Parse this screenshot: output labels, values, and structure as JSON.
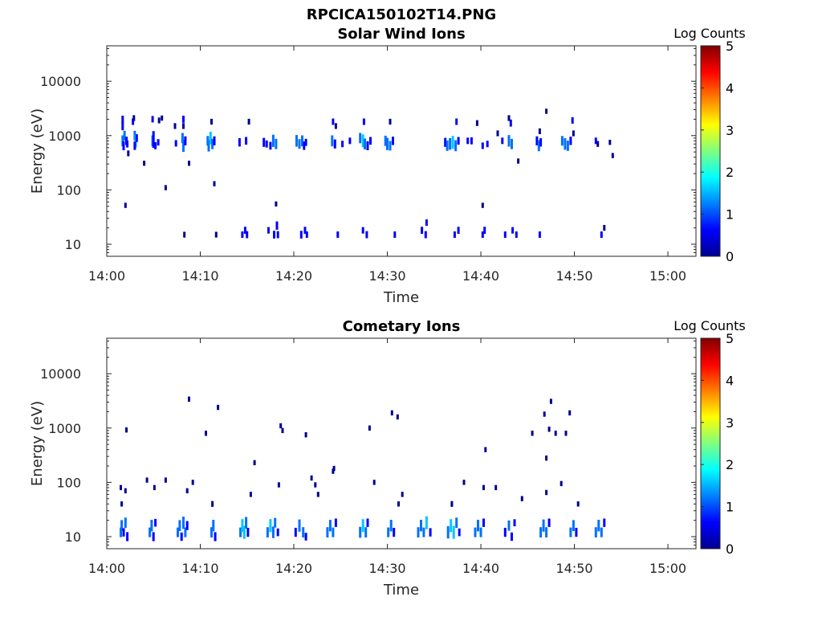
{
  "figure": {
    "title": "RPCICA150102T14.PNG"
  },
  "palette": [
    "#00008f",
    "#0000ff",
    "#0070ff",
    "#00c8ff",
    "#40ffbf",
    "#c0ff40",
    "#ffd000",
    "#ff6000",
    "#e00000",
    "#800000"
  ],
  "chart_data": [
    {
      "type": "heatmap",
      "title": "Solar Wind Ions",
      "xlabel": "Time",
      "ylabel": "Energy (eV)",
      "xlim": [
        "14:00",
        "15:03"
      ],
      "ylim": [
        6,
        45000
      ],
      "yscale": "log",
      "xticks": [
        "14:00",
        "14:10",
        "14:20",
        "14:30",
        "14:40",
        "14:50",
        "15:00"
      ],
      "yticks": [
        "10",
        "100",
        "1000",
        "10000"
      ],
      "colorbar": {
        "label": "Log Counts",
        "range": [
          0,
          5
        ],
        "ticks": [
          "0",
          "1",
          "2",
          "3",
          "4",
          "5"
        ]
      },
      "grid": false,
      "points": [
        [
          1.7,
          2000,
          0.6
        ],
        [
          1.7,
          1500,
          0.8
        ],
        [
          1.7,
          800,
          1.2
        ],
        [
          1.8,
          650,
          0.9
        ],
        [
          1.9,
          1000,
          1.0
        ],
        [
          2.1,
          800,
          0.8
        ],
        [
          2.2,
          700,
          0.6
        ],
        [
          2.0,
          52,
          0.3
        ],
        [
          2.3,
          470,
          0.4
        ],
        [
          3.0,
          1000,
          1.0
        ],
        [
          3.1,
          800,
          1.5
        ],
        [
          3.0,
          650,
          0.8
        ],
        [
          3.2,
          900,
          0.7
        ],
        [
          2.8,
          1800,
          0.5
        ],
        [
          2.9,
          2100,
          0.4
        ],
        [
          4.0,
          310,
          0.3
        ],
        [
          4.9,
          800,
          1.2
        ],
        [
          5.0,
          1000,
          0.9
        ],
        [
          5.0,
          700,
          0.7
        ],
        [
          5.2,
          650,
          0.6
        ],
        [
          4.9,
          2000,
          0.5
        ],
        [
          5.6,
          1900,
          0.4
        ],
        [
          5.9,
          2100,
          0.3
        ],
        [
          5.5,
          750,
          0.5
        ],
        [
          6.3,
          110,
          0.3
        ],
        [
          7.4,
          720,
          0.5
        ],
        [
          7.3,
          1500,
          0.4
        ],
        [
          8.1,
          900,
          1.1
        ],
        [
          8.2,
          650,
          1.4
        ],
        [
          8.4,
          800,
          0.9
        ],
        [
          8.2,
          2000,
          0.6
        ],
        [
          8.2,
          1500,
          0.4
        ],
        [
          8.8,
          310,
          0.3
        ],
        [
          8.3,
          15,
          0.4
        ],
        [
          10.8,
          800,
          1.0
        ],
        [
          10.9,
          650,
          1.3
        ],
        [
          11.1,
          900,
          1.5
        ],
        [
          11.3,
          700,
          1.1
        ],
        [
          11.5,
          800,
          0.9
        ],
        [
          11.2,
          1800,
          0.4
        ],
        [
          11.5,
          130,
          0.3
        ],
        [
          11.7,
          15,
          0.4
        ],
        [
          14.2,
          750,
          0.8
        ],
        [
          14.5,
          15,
          0.5
        ],
        [
          14.8,
          18,
          0.6
        ],
        [
          15.0,
          15,
          0.6
        ],
        [
          14.9,
          800,
          0.7
        ],
        [
          15.2,
          1800,
          0.4
        ],
        [
          16.8,
          750,
          0.9
        ],
        [
          17.1,
          700,
          0.6
        ],
        [
          17.3,
          18,
          0.5
        ],
        [
          17.5,
          650,
          0.7
        ],
        [
          17.8,
          800,
          1.4
        ],
        [
          18.1,
          700,
          1.1
        ],
        [
          18.1,
          55,
          0.3
        ],
        [
          17.9,
          15,
          0.7
        ],
        [
          18.2,
          22,
          0.8
        ],
        [
          18.3,
          15,
          0.6
        ],
        [
          20.3,
          800,
          1.3
        ],
        [
          20.6,
          700,
          1.0
        ],
        [
          20.9,
          800,
          1.2
        ],
        [
          21.1,
          650,
          0.8
        ],
        [
          21.3,
          750,
          0.6
        ],
        [
          20.8,
          15,
          0.7
        ],
        [
          21.2,
          18,
          0.6
        ],
        [
          21.4,
          15,
          0.5
        ],
        [
          24.1,
          800,
          1.2
        ],
        [
          24.4,
          700,
          0.9
        ],
        [
          24.2,
          1800,
          0.5
        ],
        [
          24.5,
          1500,
          0.4
        ],
        [
          24.7,
          15,
          0.5
        ],
        [
          25.2,
          700,
          0.5
        ],
        [
          26.0,
          800,
          0.5
        ],
        [
          27.1,
          900,
          1.1
        ],
        [
          27.4,
          800,
          1.6
        ],
        [
          27.6,
          700,
          1.2
        ],
        [
          27.9,
          650,
          0.9
        ],
        [
          28.2,
          800,
          0.7
        ],
        [
          27.5,
          1800,
          0.5
        ],
        [
          27.4,
          18,
          0.5
        ],
        [
          27.8,
          15,
          0.6
        ],
        [
          29.8,
          800,
          1.1
        ],
        [
          30.0,
          700,
          1.4
        ],
        [
          30.3,
          650,
          1.0
        ],
        [
          30.6,
          800,
          0.8
        ],
        [
          30.3,
          1800,
          0.4
        ],
        [
          30.8,
          15,
          0.5
        ],
        [
          33.7,
          18,
          0.6
        ],
        [
          34.1,
          15,
          0.6
        ],
        [
          34.2,
          25,
          0.5
        ],
        [
          36.2,
          750,
          0.9
        ],
        [
          36.4,
          650,
          1.1
        ],
        [
          36.7,
          700,
          1.3
        ],
        [
          37.0,
          750,
          1.7
        ],
        [
          37.3,
          650,
          1.2
        ],
        [
          37.6,
          800,
          0.7
        ],
        [
          37.4,
          1800,
          0.5
        ],
        [
          37.2,
          15,
          0.5
        ],
        [
          37.6,
          18,
          0.6
        ],
        [
          38.6,
          800,
          0.5
        ],
        [
          39.0,
          800,
          0.6
        ],
        [
          39.6,
          1700,
          0.4
        ],
        [
          40.2,
          650,
          0.5
        ],
        [
          40.2,
          52,
          0.3
        ],
        [
          40.2,
          15,
          0.5
        ],
        [
          40.4,
          18,
          0.6
        ],
        [
          40.7,
          700,
          0.5
        ],
        [
          41.8,
          1100,
          0.4
        ],
        [
          42.3,
          800,
          0.5
        ],
        [
          42.6,
          15,
          0.5
        ],
        [
          43.0,
          800,
          1.3
        ],
        [
          43.3,
          700,
          1.1
        ],
        [
          43.2,
          1700,
          0.6
        ],
        [
          43.0,
          2100,
          0.4
        ],
        [
          43.4,
          18,
          0.5
        ],
        [
          44.0,
          340,
          0.3
        ],
        [
          43.8,
          15,
          0.5
        ],
        [
          46.0,
          800,
          0.9
        ],
        [
          46.2,
          650,
          1.2
        ],
        [
          46.4,
          750,
          0.8
        ],
        [
          47.0,
          2800,
          0.3
        ],
        [
          46.3,
          1200,
          0.4
        ],
        [
          46.3,
          15,
          0.5
        ],
        [
          48.7,
          800,
          1.0
        ],
        [
          49.0,
          700,
          1.3
        ],
        [
          49.3,
          650,
          1.1
        ],
        [
          49.6,
          800,
          0.8
        ],
        [
          49.8,
          1900,
          0.5
        ],
        [
          49.9,
          1100,
          0.4
        ],
        [
          52.3,
          800,
          0.5
        ],
        [
          52.5,
          700,
          0.4
        ],
        [
          52.9,
          15,
          0.5
        ],
        [
          53.2,
          20,
          0.4
        ],
        [
          53.8,
          750,
          0.3
        ],
        [
          54.1,
          430,
          0.3
        ]
      ]
    },
    {
      "type": "heatmap",
      "title": "Cometary Ions",
      "xlabel": "Time",
      "ylabel": "Energy (eV)",
      "xlim": [
        "14:00",
        "15:03"
      ],
      "ylim": [
        6,
        45000
      ],
      "yscale": "log",
      "xticks": [
        "14:00",
        "14:10",
        "14:20",
        "14:30",
        "14:40",
        "14:50",
        "15:00"
      ],
      "yticks": [
        "10",
        "100",
        "1000",
        "10000"
      ],
      "colorbar": {
        "label": "Log Counts",
        "range": [
          0,
          5
        ],
        "ticks": [
          "0",
          "1",
          "2",
          "3",
          "4",
          "5"
        ]
      },
      "grid": false,
      "points": [
        [
          1.5,
          12,
          1.0
        ],
        [
          1.6,
          16,
          1.2
        ],
        [
          1.8,
          12,
          0.8
        ],
        [
          2.0,
          18,
          1.1
        ],
        [
          2.2,
          10,
          0.9
        ],
        [
          2.0,
          70,
          0.3
        ],
        [
          1.5,
          80,
          0.3
        ],
        [
          1.6,
          40,
          0.3
        ],
        [
          2.1,
          920,
          0.3
        ],
        [
          4.6,
          12,
          1.0
        ],
        [
          4.8,
          16,
          1.3
        ],
        [
          5.0,
          10,
          0.9
        ],
        [
          5.2,
          18,
          0.7
        ],
        [
          4.3,
          110,
          0.3
        ],
        [
          5.1,
          80,
          0.3
        ],
        [
          6.3,
          110,
          0.3
        ],
        [
          7.6,
          12,
          1.0
        ],
        [
          7.8,
          16,
          1.2
        ],
        [
          8.0,
          10,
          0.8
        ],
        [
          8.2,
          18,
          1.4
        ],
        [
          8.4,
          12,
          1.0
        ],
        [
          8.6,
          16,
          0.9
        ],
        [
          8.8,
          3400,
          0.3
        ],
        [
          9.2,
          100,
          0.3
        ],
        [
          8.6,
          70,
          0.3
        ],
        [
          10.6,
          800,
          0.3
        ],
        [
          11.2,
          12,
          1.1
        ],
        [
          11.4,
          16,
          1.3
        ],
        [
          11.6,
          10,
          0.9
        ],
        [
          11.3,
          40,
          0.4
        ],
        [
          11.9,
          2400,
          0.3
        ],
        [
          14.3,
          12,
          1.0
        ],
        [
          14.5,
          16,
          1.5
        ],
        [
          14.7,
          12,
          1.8
        ],
        [
          14.9,
          18,
          1.3
        ],
        [
          15.1,
          12,
          0.9
        ],
        [
          15.4,
          60,
          0.3
        ],
        [
          15.8,
          230,
          0.3
        ],
        [
          17.2,
          12,
          1.1
        ],
        [
          17.5,
          16,
          1.6
        ],
        [
          17.8,
          12,
          1.3
        ],
        [
          18.0,
          18,
          1.0
        ],
        [
          18.3,
          12,
          0.7
        ],
        [
          18.6,
          1100,
          0.3
        ],
        [
          18.8,
          900,
          0.3
        ],
        [
          18.4,
          90,
          0.3
        ],
        [
          20.2,
          12,
          0.9
        ],
        [
          20.6,
          16,
          1.4
        ],
        [
          21.0,
          12,
          1.1
        ],
        [
          21.3,
          10,
          0.7
        ],
        [
          21.3,
          750,
          0.3
        ],
        [
          21.9,
          120,
          0.3
        ],
        [
          22.3,
          90,
          0.3
        ],
        [
          22.6,
          60,
          0.3
        ],
        [
          23.6,
          12,
          1.1
        ],
        [
          23.9,
          16,
          1.3
        ],
        [
          24.2,
          12,
          1.0
        ],
        [
          24.5,
          18,
          0.8
        ],
        [
          24.2,
          160,
          0.3
        ],
        [
          24.3,
          180,
          0.3
        ],
        [
          27.1,
          12,
          1.2
        ],
        [
          27.4,
          16,
          1.5
        ],
        [
          27.7,
          12,
          1.1
        ],
        [
          27.9,
          18,
          0.8
        ],
        [
          28.1,
          1000,
          0.3
        ],
        [
          28.6,
          100,
          0.3
        ],
        [
          30.1,
          12,
          1.0
        ],
        [
          30.4,
          16,
          1.3
        ],
        [
          30.7,
          12,
          0.9
        ],
        [
          30.5,
          1900,
          0.3
        ],
        [
          31.1,
          1600,
          0.3
        ],
        [
          31.2,
          40,
          0.3
        ],
        [
          31.6,
          60,
          0.3
        ],
        [
          33.3,
          12,
          1.1
        ],
        [
          33.6,
          16,
          1.3
        ],
        [
          33.9,
          12,
          1.0
        ],
        [
          34.2,
          18,
          1.6
        ],
        [
          34.6,
          12,
          0.8
        ],
        [
          36.5,
          12,
          1.4
        ],
        [
          36.8,
          16,
          1.8
        ],
        [
          37.1,
          12,
          1.5
        ],
        [
          37.4,
          18,
          1.1
        ],
        [
          37.7,
          12,
          0.7
        ],
        [
          36.9,
          40,
          0.4
        ],
        [
          38.2,
          100,
          0.3
        ],
        [
          39.4,
          12,
          1.0
        ],
        [
          39.7,
          16,
          1.3
        ],
        [
          40.0,
          12,
          1.0
        ],
        [
          40.3,
          18,
          0.8
        ],
        [
          40.5,
          400,
          0.3
        ],
        [
          40.3,
          80,
          0.3
        ],
        [
          41.6,
          80,
          0.3
        ],
        [
          42.6,
          12,
          0.9
        ],
        [
          43.0,
          16,
          1.1
        ],
        [
          43.3,
          10,
          0.8
        ],
        [
          43.6,
          18,
          0.6
        ],
        [
          44.4,
          50,
          0.3
        ],
        [
          45.5,
          800,
          0.3
        ],
        [
          46.4,
          12,
          1.1
        ],
        [
          46.7,
          16,
          1.4
        ],
        [
          47.0,
          12,
          1.1
        ],
        [
          47.3,
          18,
          0.8
        ],
        [
          46.8,
          1800,
          0.3
        ],
        [
          47.5,
          3100,
          0.3
        ],
        [
          47.3,
          950,
          0.3
        ],
        [
          47.0,
          280,
          0.3
        ],
        [
          47.0,
          65,
          0.3
        ],
        [
          48.0,
          800,
          0.3
        ],
        [
          48.6,
          95,
          0.3
        ],
        [
          49.1,
          800,
          0.3
        ],
        [
          49.5,
          1900,
          0.3
        ],
        [
          49.6,
          12,
          1.0
        ],
        [
          49.9,
          16,
          1.2
        ],
        [
          50.2,
          12,
          0.9
        ],
        [
          50.4,
          40,
          0.3
        ],
        [
          52.3,
          12,
          1.1
        ],
        [
          52.6,
          16,
          1.3
        ],
        [
          52.9,
          12,
          1.0
        ],
        [
          53.2,
          18,
          0.8
        ]
      ]
    }
  ]
}
